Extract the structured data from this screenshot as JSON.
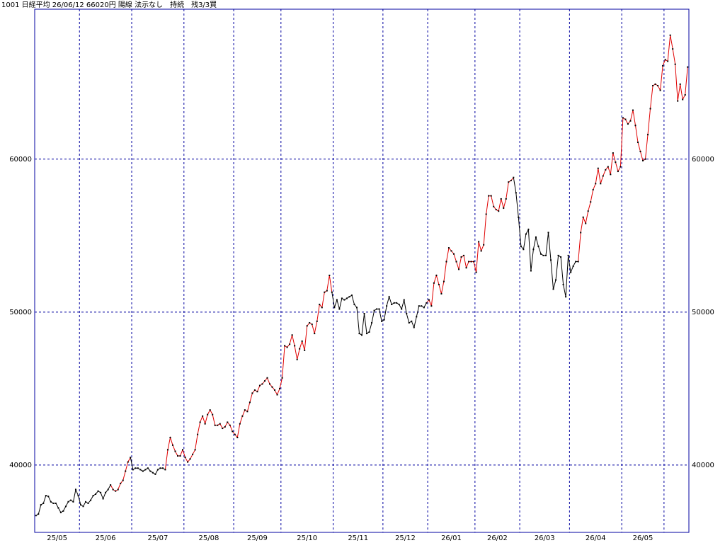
{
  "chart_data": {
    "type": "line",
    "title": "1001 日経平均 26/06/12 66020円 陽線 法示なし　持続　残3/3買",
    "ylim": [
      35600,
      69800
    ],
    "yticks": [
      40000,
      50000,
      60000
    ],
    "grid": true,
    "frame_color": "#0000a0",
    "months": [
      {
        "label": "25/05",
        "days": 18
      },
      {
        "label": "25/06",
        "days": 21
      },
      {
        "label": "25/07",
        "days": 21
      },
      {
        "label": "25/08",
        "days": 20
      },
      {
        "label": "25/09",
        "days": 19
      },
      {
        "label": "25/10",
        "days": 21
      },
      {
        "label": "25/11",
        "days": 20
      },
      {
        "label": "25/12",
        "days": 18
      },
      {
        "label": "26/01",
        "days": 19
      },
      {
        "label": "26/02",
        "days": 18
      },
      {
        "label": "26/03",
        "days": 20
      },
      {
        "label": "26/04",
        "days": 21
      },
      {
        "label": "26/05",
        "days": 17
      },
      {
        "label": null,
        "days": 10
      }
    ],
    "segments": [
      {
        "color": "#000000",
        "values": [
          36700,
          36800,
          37400,
          37500,
          38000,
          37950,
          37600,
          37500,
          37500,
          37200,
          36900,
          37000,
          37300,
          37600,
          37700,
          37600,
          38400,
          38000,
          37400,
          37300,
          37600,
          37500,
          37700,
          38000,
          38100,
          38300,
          38200,
          37800,
          38200,
          38400,
          38700
        ]
      },
      {
        "color": "#e00000",
        "values": [
          38400,
          38300,
          38400,
          38800,
          39000,
          39600,
          40200,
          40500
        ]
      },
      {
        "color": "#000000",
        "values": [
          39700,
          39800,
          39800,
          39700,
          39600,
          39700,
          39800,
          39600,
          39500,
          39400,
          39700,
          39800,
          39800,
          39700
        ]
      },
      {
        "color": "#e00000",
        "values": [
          41000,
          41800,
          41300,
          40900,
          40600,
          40600,
          41000,
          40500,
          40200,
          40400,
          40700,
          41000,
          42000,
          42800,
          43200,
          42700,
          43300,
          43600,
          43300,
          42600,
          42600,
          42700,
          42400,
          42500,
          42800,
          42600,
          42200,
          42000,
          41800,
          42700,
          43200,
          43600,
          43500,
          44100,
          44700,
          44900,
          44800,
          45200,
          45300,
          45500,
          45700,
          45300,
          45100,
          44900,
          44600,
          45000,
          45700,
          47800,
          47700,
          47900,
          48500,
          47800,
          46900,
          47600,
          48100,
          47500,
          49100,
          49300,
          49200,
          48600,
          49400,
          50500,
          50300,
          51300,
          51400,
          52400,
          51300
        ]
      },
      {
        "color": "#000000",
        "values": [
          50300,
          50800,
          50200,
          50900,
          50800,
          50900,
          51000,
          51100,
          50500,
          50300,
          48600,
          48500,
          49900,
          48600,
          48700,
          49300,
          50100,
          50200,
          50200,
          49400,
          49500,
          50400,
          51000,
          50500,
          50600,
          50600,
          50500,
          50200,
          50800,
          49900,
          49300,
          49400,
          49000,
          49700,
          50400,
          50400,
          50300,
          50600
        ]
      },
      {
        "color": "#e00000",
        "values": [
          50800,
          50400,
          51900,
          52400,
          51800,
          51200,
          52000,
          53300,
          54200,
          54000,
          53800,
          53300,
          52800,
          53600,
          53700,
          52900,
          53300,
          53300,
          53300,
          52600,
          54600,
          54000,
          54400,
          56400,
          57600,
          57600,
          56900,
          56700,
          56600,
          57400,
          56800,
          57400,
          58500,
          58600,
          58800
        ]
      },
      {
        "color": "#000000",
        "values": [
          57800,
          56200,
          54300,
          54100,
          55100,
          55400,
          52700,
          54100,
          54900,
          54300,
          53800,
          53700,
          53700,
          55200,
          53400,
          51500,
          52100,
          53700,
          53600,
          51800,
          51000,
          53700,
          52600,
          53000,
          53300,
          53300
        ]
      },
      {
        "color": "#e00000",
        "values": [
          55200,
          56200,
          55800,
          56600,
          57200,
          58000,
          58400,
          59400,
          58400,
          58900,
          59300,
          59500,
          59000,
          60400,
          59800,
          59200,
          59500,
          62700,
          62600,
          62300,
          62500,
          63200,
          62200,
          61100,
          60500,
          59900,
          60000,
          61600,
          63300,
          64800,
          64900,
          64800,
          64500,
          66100,
          66500,
          66400,
          68100,
          67200,
          66200,
          63800,
          64900,
          63900,
          64200,
          66020
        ]
      }
    ]
  }
}
